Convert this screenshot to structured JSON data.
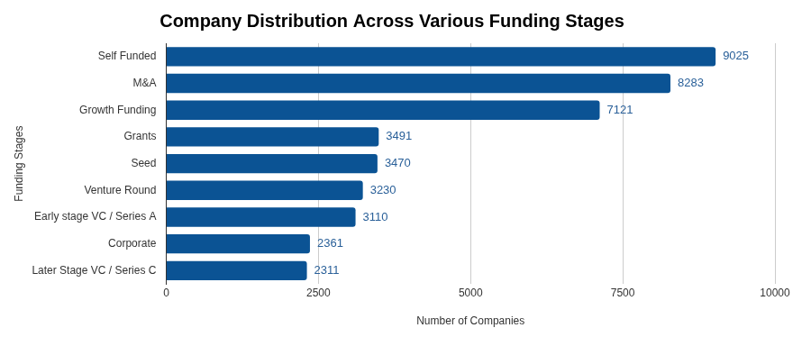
{
  "chart_data": {
    "type": "bar",
    "orientation": "horizontal",
    "title": "Company Distribution Across Various Funding Stages",
    "xlabel": "Number of Companies",
    "ylabel": "Funding Stages",
    "categories": [
      "Self Funded",
      "M&A",
      "Growth Funding",
      "Grants",
      "Seed",
      "Venture Round",
      "Early stage VC / Series A",
      "Corporate",
      "Later Stage VC / Series C"
    ],
    "values": [
      9025,
      8283,
      7121,
      3491,
      3470,
      3230,
      3110,
      2361,
      2311
    ],
    "color": "#0b5394",
    "xlim": [
      0,
      10000
    ],
    "xticks": [
      0,
      2500,
      5000,
      7500,
      10000
    ],
    "grid": true,
    "data_labels": true
  }
}
